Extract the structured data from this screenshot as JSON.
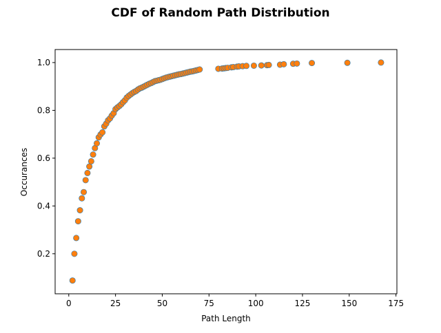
{
  "chart_data": {
    "type": "scatter",
    "title": "CDF of Random Path Distribution",
    "xlabel": "Path Length",
    "ylabel": "Occurances",
    "xlim": [
      -7.3,
      175.5
    ],
    "ylim": [
      0.0325,
      1.0545
    ],
    "xticks": [
      0,
      25,
      50,
      75,
      100,
      125,
      150,
      175
    ],
    "xtick_labels": [
      "0",
      "25",
      "50",
      "75",
      "100",
      "125",
      "150",
      "175"
    ],
    "yticks": [
      0.2,
      0.4,
      0.6,
      0.8,
      1.0
    ],
    "ytick_labels": [
      "0.2",
      "0.4",
      "0.6",
      "0.8",
      "1.0"
    ],
    "grid": false,
    "legend": "none",
    "marker_color": "#ff7f0e",
    "marker_edge_color": "#1f77b4",
    "series": [
      {
        "x": [
          2,
          3,
          4,
          5,
          6,
          7,
          8,
          9,
          10,
          11,
          12,
          13,
          14,
          15,
          16,
          17,
          18,
          19,
          20,
          21,
          22,
          23,
          24,
          25,
          26,
          27,
          28,
          29,
          30,
          31,
          32,
          33,
          34,
          35,
          36,
          37,
          38,
          39,
          40,
          41,
          42,
          43,
          44,
          45,
          46,
          47,
          48,
          49,
          50,
          51,
          52,
          53,
          54,
          55,
          56,
          57,
          58,
          59,
          60,
          61,
          62,
          63,
          64,
          65,
          66,
          67,
          68,
          69,
          70,
          80,
          82,
          83,
          84,
          85,
          87,
          88,
          90,
          91,
          93,
          95,
          99,
          103,
          106,
          107,
          113,
          115,
          120,
          122,
          130,
          149,
          167
        ],
        "y": [
          0.088,
          0.2,
          0.266,
          0.336,
          0.382,
          0.432,
          0.458,
          0.508,
          0.538,
          0.565,
          0.587,
          0.615,
          0.642,
          0.662,
          0.687,
          0.699,
          0.708,
          0.733,
          0.744,
          0.758,
          0.766,
          0.778,
          0.788,
          0.805,
          0.812,
          0.818,
          0.825,
          0.834,
          0.842,
          0.853,
          0.86,
          0.866,
          0.872,
          0.877,
          0.881,
          0.887,
          0.892,
          0.895,
          0.899,
          0.903,
          0.907,
          0.911,
          0.914,
          0.918,
          0.922,
          0.924,
          0.926,
          0.928,
          0.931,
          0.934,
          0.937,
          0.939,
          0.941,
          0.943,
          0.945,
          0.947,
          0.949,
          0.951,
          0.952,
          0.954,
          0.956,
          0.958,
          0.96,
          0.962,
          0.963,
          0.965,
          0.967,
          0.969,
          0.971,
          0.974,
          0.975,
          0.976,
          0.977,
          0.978,
          0.98,
          0.981,
          0.983,
          0.984,
          0.985,
          0.986,
          0.987,
          0.988,
          0.989,
          0.99,
          0.991,
          0.993,
          0.995,
          0.996,
          0.998,
          0.999,
          1.0
        ]
      }
    ]
  }
}
